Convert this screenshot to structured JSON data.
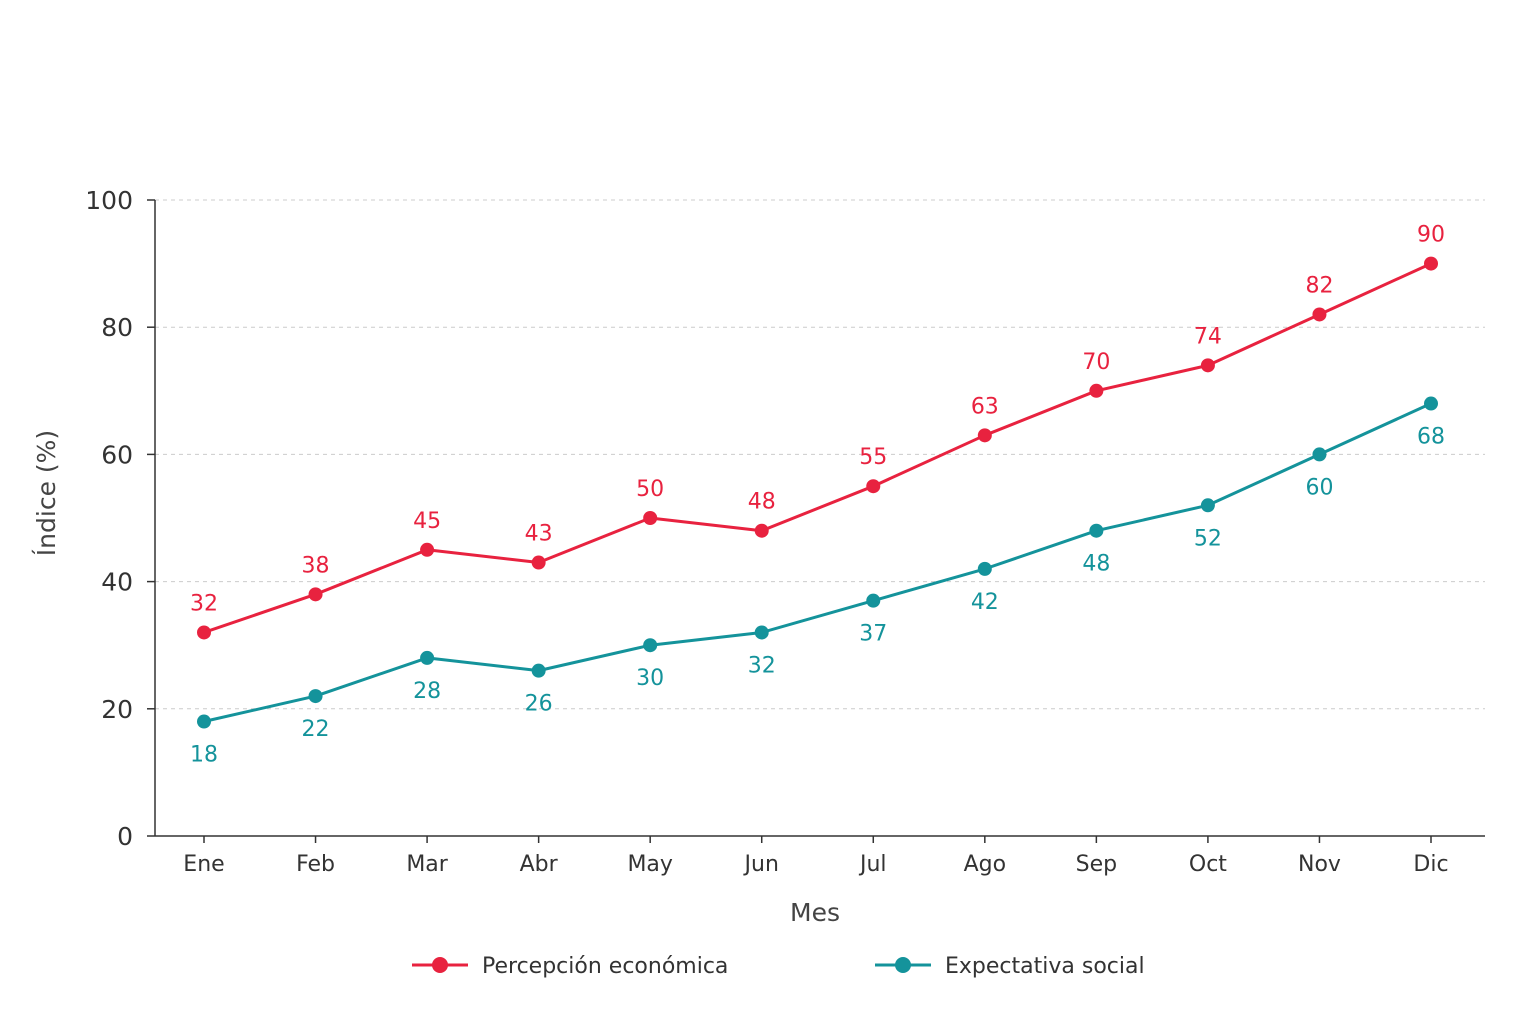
{
  "chart_data": {
    "type": "line",
    "title": "",
    "xlabel": "Mes",
    "ylabel": "Índice (%)",
    "categories": [
      "Ene",
      "Feb",
      "Mar",
      "Abr",
      "May",
      "Jun",
      "Jul",
      "Ago",
      "Sep",
      "Oct",
      "Nov",
      "Dic"
    ],
    "ylim": [
      0,
      100
    ],
    "yticks": [
      0,
      20,
      40,
      60,
      80,
      100
    ],
    "grid": true,
    "legend_position": "bottom",
    "series": [
      {
        "name": "Percepción económica",
        "color": "#e8223f",
        "values": [
          32,
          38,
          45,
          43,
          50,
          48,
          55,
          63,
          70,
          74,
          82,
          90
        ],
        "label_position": "above"
      },
      {
        "name": "Expectativa social",
        "color": "#14939b",
        "values": [
          18,
          22,
          28,
          26,
          30,
          32,
          37,
          42,
          48,
          52,
          60,
          68
        ],
        "label_position": "below"
      }
    ]
  }
}
